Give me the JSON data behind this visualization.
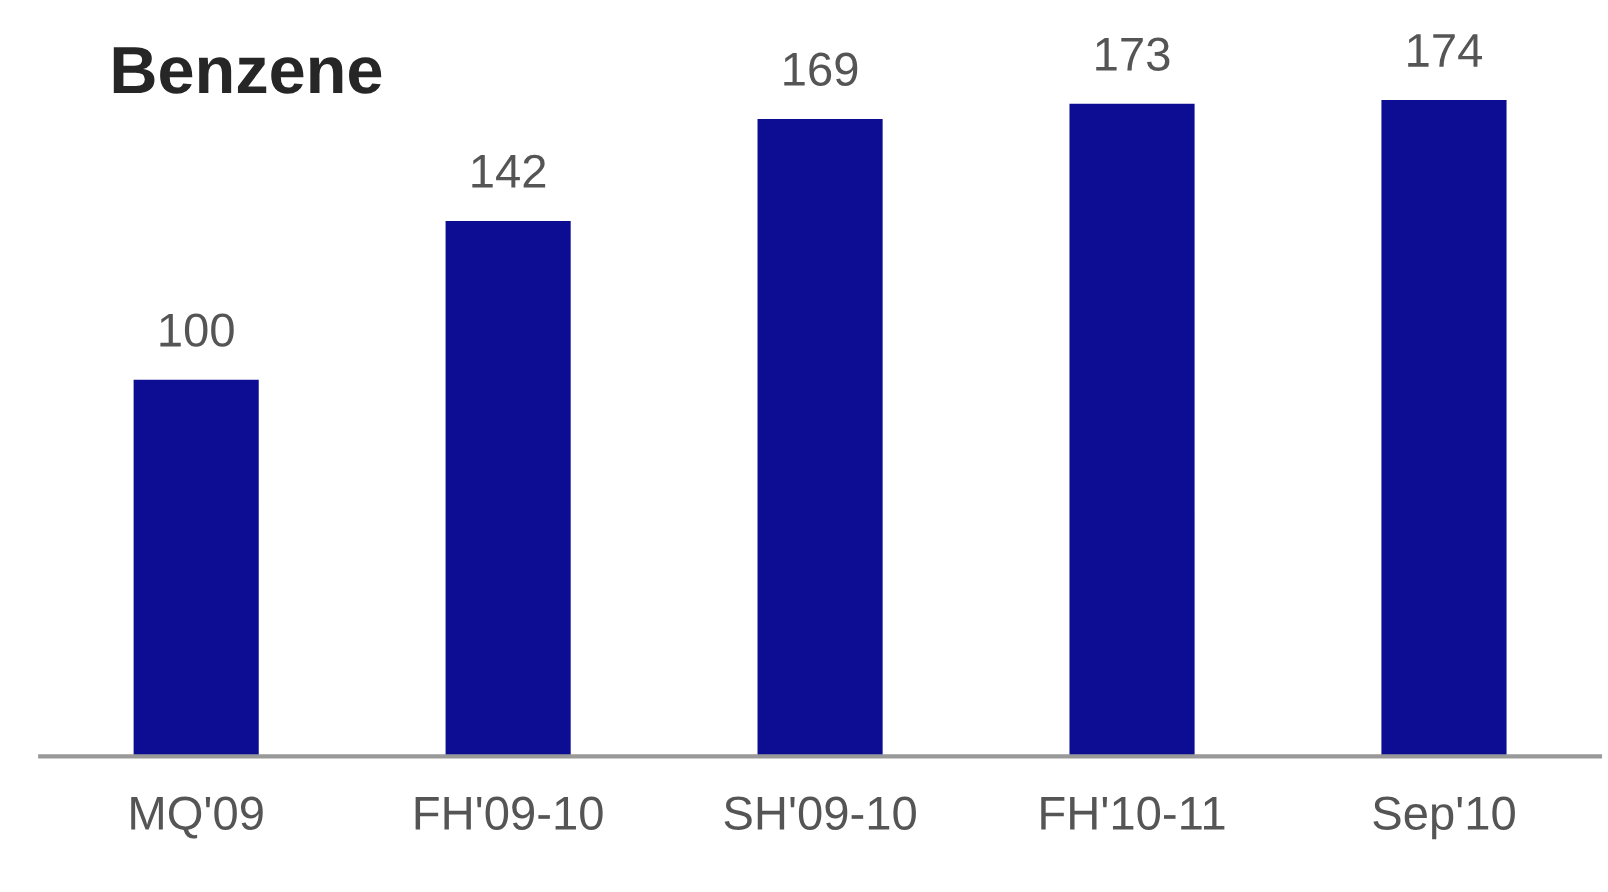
{
  "chart_data": {
    "type": "bar",
    "title": "Benzene",
    "categories": [
      "MQ'09",
      "FH'09-10",
      "SH'09-10",
      "FH'10-11",
      "Sep'10"
    ],
    "values": [
      100,
      142,
      169,
      173,
      174
    ],
    "color": "#0d0d94",
    "tick_labels": "x",
    "data_labels": true,
    "grid": false,
    "legend": false
  }
}
